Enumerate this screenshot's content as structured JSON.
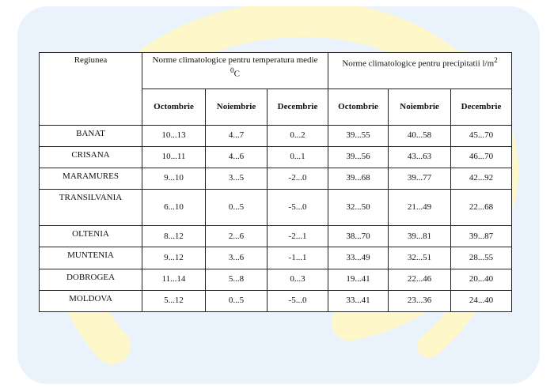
{
  "table": {
    "header": {
      "region": "Regiunea",
      "temperature_group": "Norme climatologice pentru temperatura medie",
      "temperature_unit_sup": "0",
      "temperature_unit": "C",
      "precipitation_group": "Norme climatologice pentru precipitatii l/m",
      "precipitation_unit_sup": "2",
      "months": [
        "Octombrie",
        "Noiembrie",
        "Decembrie",
        "Octombrie",
        "Noiembrie",
        "Decembrie"
      ]
    },
    "rows": [
      {
        "region": "BANAT",
        "cells": [
          "10...13",
          "4...7",
          "0...2",
          "39...55",
          "40...58",
          "45...70"
        ]
      },
      {
        "region": "CRISANA",
        "cells": [
          "10...11",
          "4...6",
          "0...1",
          "39...56",
          "43...63",
          "46...70"
        ]
      },
      {
        "region": "MARAMURES",
        "cells": [
          "9...10",
          "3...5",
          "-2...0",
          "39...68",
          "39...77",
          "42...92"
        ]
      },
      {
        "region": "TRANSILVANIA",
        "cells": [
          "6...10",
          "0...5",
          "-5...0",
          "32...50",
          "21...49",
          "22...68"
        ]
      },
      {
        "region": "OLTENIA",
        "cells": [
          "8...12",
          "2...6",
          "-2...1",
          "38...70",
          "39...81",
          "39...87"
        ]
      },
      {
        "region": "MUNTENIA",
        "cells": [
          "9...12",
          "3...6",
          "-1...1",
          "33...49",
          "32...51",
          "28...55"
        ]
      },
      {
        "region": "DOBROGEA",
        "cells": [
          "11...14",
          "5...8",
          "0...3",
          "19...41",
          "22...46",
          "20...40"
        ]
      },
      {
        "region": "MOLDOVA",
        "cells": [
          "5...12",
          "0...5",
          "-5...0",
          "33...41",
          "23...36",
          "24...40"
        ]
      }
    ]
  },
  "colors": {
    "background_panel": "#eaf3fb",
    "watermark_yellow": "#fdf7c9",
    "grid_line": "#222222"
  }
}
